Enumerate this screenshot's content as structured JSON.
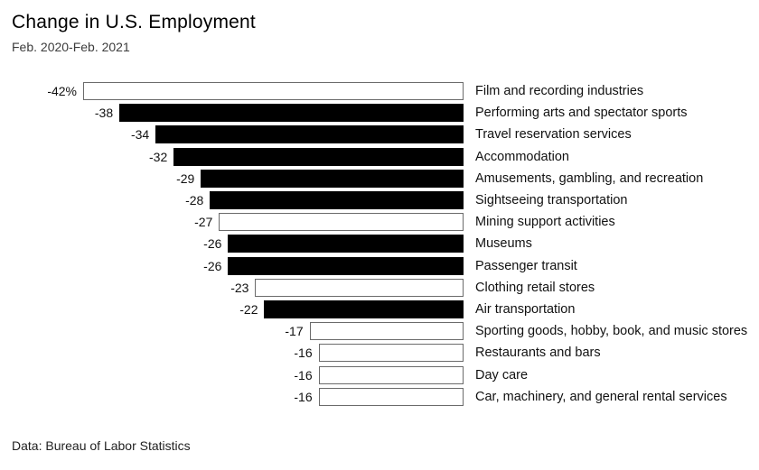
{
  "header": {
    "title": "Change in U.S. Employment",
    "subtitle": "Feb. 2020-Feb. 2021"
  },
  "footer": {
    "source": "Data: Bureau of Labor Statistics"
  },
  "chart_data": {
    "type": "bar",
    "orientation": "horizontal",
    "title": "Change in U.S. Employment",
    "subtitle": "Feb. 2020-Feb. 2021",
    "unit": "%",
    "xlim": [
      -42,
      0
    ],
    "grid": false,
    "axes_visible": false,
    "value_label_position": "left-of-bar",
    "category_label_position": "right-of-bar",
    "categories": [
      "Film and recording industries",
      "Performing arts and spectator sports",
      "Travel reservation services",
      "Accommodation",
      "Amusements, gambling, and recreation",
      "Sightseeing transportation",
      "Mining support activities",
      "Museums",
      "Passenger transit",
      "Clothing retail stores",
      "Air transportation",
      "Sporting goods, hobby, book, and music stores",
      "Restaurants and bars",
      "Day care",
      "Car, machinery, and general rental services"
    ],
    "values": [
      -42,
      -38,
      -34,
      -32,
      -29,
      -28,
      -27,
      -26,
      -26,
      -23,
      -22,
      -17,
      -16,
      -16,
      -16
    ],
    "value_labels": [
      "-42%",
      "-38",
      "-34",
      "-32",
      "-29",
      "-28",
      "-27",
      "-26",
      "-26",
      "-23",
      "-22",
      "-17",
      "-16",
      "-16",
      "-16"
    ],
    "bar_styles": [
      "outline",
      "filled",
      "filled",
      "filled",
      "filled",
      "filled",
      "outline",
      "filled",
      "filled",
      "outline",
      "filled",
      "outline",
      "outline",
      "outline",
      "outline"
    ],
    "colors": {
      "filled_bar": "#000000",
      "outline_bar_fill": "#ffffff",
      "outline_bar_border": "#6b6b6b",
      "background": "#ffffff",
      "text": "#000000"
    }
  }
}
